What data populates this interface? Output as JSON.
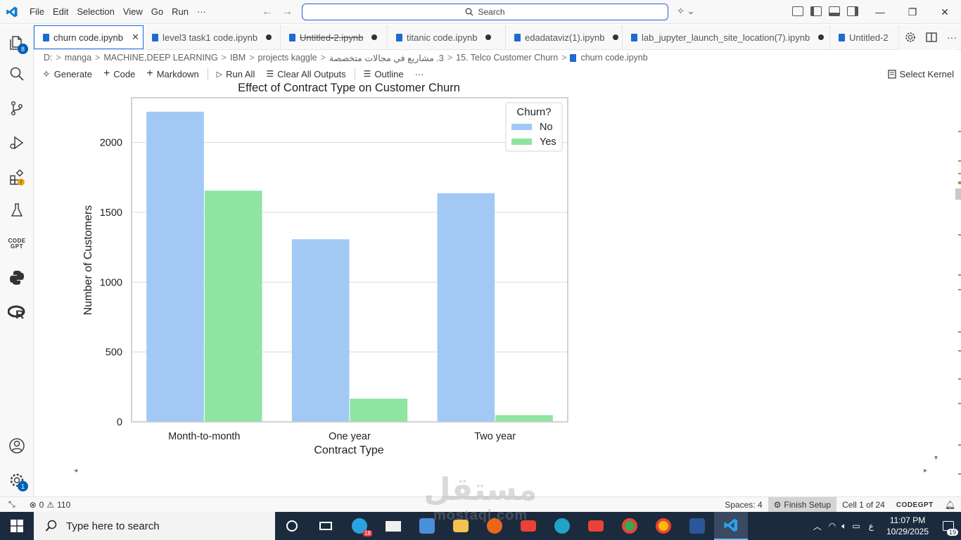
{
  "menu": [
    "File",
    "Edit",
    "Selection",
    "View",
    "Go",
    "Run",
    "···"
  ],
  "search": {
    "label": "Search"
  },
  "tabs": [
    {
      "label": "churn code.ipynb",
      "active": true,
      "state": "close"
    },
    {
      "label": "level3 task1 code.ipynb",
      "state": "dirty"
    },
    {
      "label": "Untitled-2.ipynb",
      "state": "dirty",
      "strike": true
    },
    {
      "label": "titanic code.ipynb",
      "state": "dirty"
    },
    {
      "label": "edadataviz(1).ipynb",
      "state": "dirty"
    },
    {
      "label": "lab_jupyter_launch_site_location(7).ipynb",
      "state": "dirty"
    },
    {
      "label": "Untitled-2"
    }
  ],
  "breadcrumb": [
    "D:",
    "manga",
    "MACHINE,DEEP LEARNING",
    "IBM",
    "projects kaggle",
    "3. مشاريع في مجالات متخصصة",
    "15. Telco Customer Churn",
    "churn code.ipynb"
  ],
  "toolbar": {
    "generate": "Generate",
    "code": "Code",
    "markdown": "Markdown",
    "run_all": "Run All",
    "clear_outputs": "Clear All Outputs",
    "outline": "Outline",
    "more": "···",
    "select_kernel": "Select Kernel"
  },
  "activity": {
    "explorer_badge": "8",
    "settings_badge": "1",
    "codegpt_label": "CODE GPT"
  },
  "chart_data": {
    "type": "bar",
    "title": "Effect of Contract Type on Customer Churn",
    "xlabel": "Contract Type",
    "ylabel": "Number of Customers",
    "categories": [
      "Month-to-month",
      "One year",
      "Two year"
    ],
    "series": [
      {
        "name": "No",
        "values": [
          2220,
          1307,
          1637
        ],
        "color": "#a1c9f4"
      },
      {
        "name": "Yes",
        "values": [
          1655,
          166,
          48
        ],
        "color": "#8de5a1"
      }
    ],
    "ylim": [
      0,
      2320
    ],
    "yticks": [
      0,
      500,
      1000,
      1500,
      2000
    ],
    "legend": {
      "title": "Churn?",
      "position": "top-right"
    },
    "grid": "y"
  },
  "status": {
    "problems_errors": "0",
    "problems_warnings": "110",
    "spaces": "Spaces: 4",
    "finish_setup": "Finish Setup",
    "cell": "Cell 1 of 24",
    "codegpt": "CODEGPT"
  },
  "taskbar": {
    "search_placeholder": "Type here to search",
    "telegram_badge": "18",
    "lang": "ع",
    "time": "11:07 PM",
    "date": "10/29/2025",
    "notifications": "19"
  },
  "watermark": {
    "main": "مستقل",
    "sub": "mostaql.com"
  }
}
